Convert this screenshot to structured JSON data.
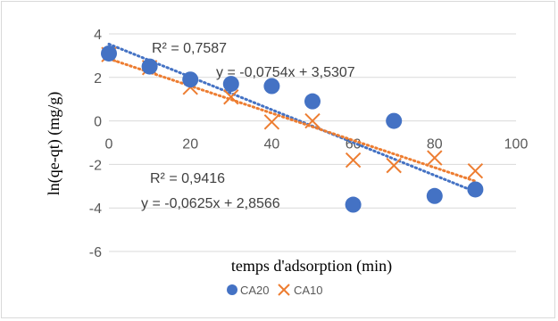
{
  "chart_data": {
    "type": "scatter",
    "xlabel": "temps d'adsorption (min)",
    "ylabel": "ln(qe-qt) (mg/g)",
    "xlim": [
      0,
      100
    ],
    "ylim": [
      -6,
      4
    ],
    "xticks": [
      "0",
      "20",
      "40",
      "60",
      "80",
      "100"
    ],
    "yticks": [
      "4",
      "2",
      "0",
      "-2",
      "-4",
      "-6"
    ],
    "grid": true,
    "legend_position": "bottom",
    "series": [
      {
        "name": "CA20",
        "marker": "circle",
        "color": "#4472C4",
        "x": [
          0,
          10,
          20,
          30,
          40,
          50,
          60,
          70,
          80,
          90
        ],
        "y": [
          3.1,
          2.5,
          1.9,
          1.7,
          1.6,
          0.9,
          -3.85,
          0.0,
          -3.45,
          -3.15
        ],
        "trendline": {
          "slope": -0.0754,
          "intercept": 3.5307
        },
        "equation": "y = -0,0754x + 3,5307",
        "r2": "R² = 0,7587"
      },
      {
        "name": "CA10",
        "marker": "cross",
        "color": "#ED7D31",
        "x": [
          0,
          10,
          20,
          30,
          40,
          50,
          60,
          70,
          80,
          90
        ],
        "y": [
          3.05,
          2.45,
          1.55,
          1.1,
          -0.05,
          0.0,
          -1.8,
          -2.05,
          -1.7,
          -2.3
        ],
        "trendline": {
          "slope": -0.0625,
          "intercept": 2.8566
        },
        "equation": "y = -0,0625x + 2,8566",
        "r2": "R² = 0,9416"
      }
    ]
  }
}
